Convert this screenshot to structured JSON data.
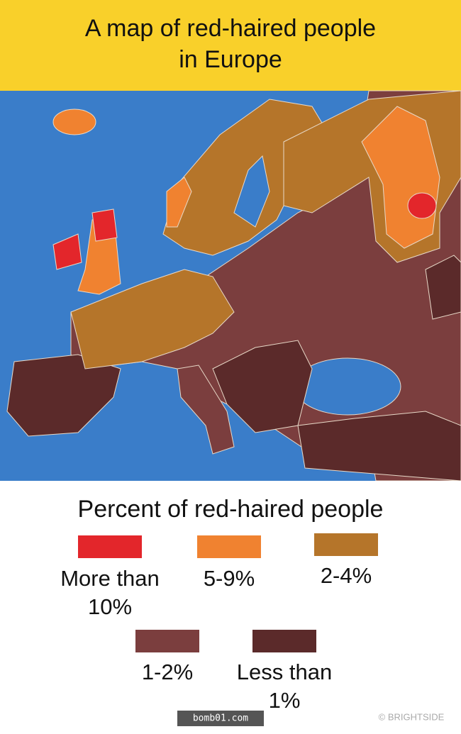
{
  "header": {
    "title": [
      "A map of red-haired people",
      "in Europe"
    ]
  },
  "legend": {
    "title": "Percent of red-haired people",
    "items": [
      {
        "label": [
          "More than",
          "10%"
        ],
        "color": "#e3262b"
      },
      {
        "label": [
          "5-9%"
        ],
        "color": "#f08230"
      },
      {
        "label": [
          "2-4%"
        ],
        "color": "#b5752a"
      },
      {
        "label": [
          "1-2%"
        ],
        "color": "#7b3e3e"
      },
      {
        "label": [
          "Less than",
          "1%"
        ],
        "color": "#5b2a2a"
      }
    ]
  },
  "footer": {
    "source": "bomb01.com",
    "credit": "© BRIGHTSIDE"
  }
}
